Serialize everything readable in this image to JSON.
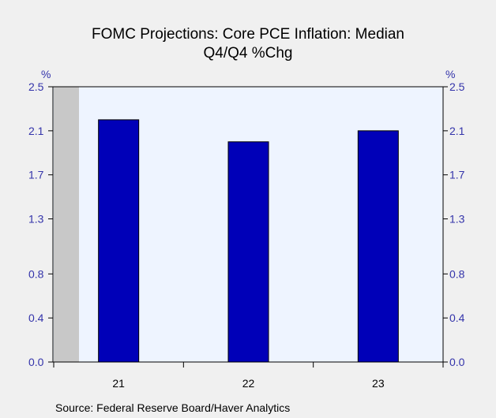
{
  "chart_data": {
    "type": "bar",
    "title_lines": [
      "FOMC Projections: Core PCE Inflation: Median",
      "Q4/Q4 %Chg"
    ],
    "categories": [
      "21",
      "22",
      "23"
    ],
    "values": [
      2.2,
      2.0,
      2.1
    ],
    "y_unit_left": "%",
    "y_unit_right": "%",
    "ylim": [
      0.0,
      2.5
    ],
    "y_ticks": [
      "0.0",
      "0.4",
      "0.8",
      "1.3",
      "1.7",
      "2.1",
      "2.5"
    ],
    "y_tick_values": [
      0.0,
      0.4,
      0.8,
      1.3,
      1.7,
      2.1,
      2.5
    ],
    "bar_color": "#0000b8",
    "plot_background": "#eef4ff",
    "shaded_region_color": "#c8c8c8",
    "axis_label_color": "#3333aa",
    "grid": false,
    "legend": "none",
    "source": "Source:  Federal Reserve Board/Haver Analytics"
  }
}
